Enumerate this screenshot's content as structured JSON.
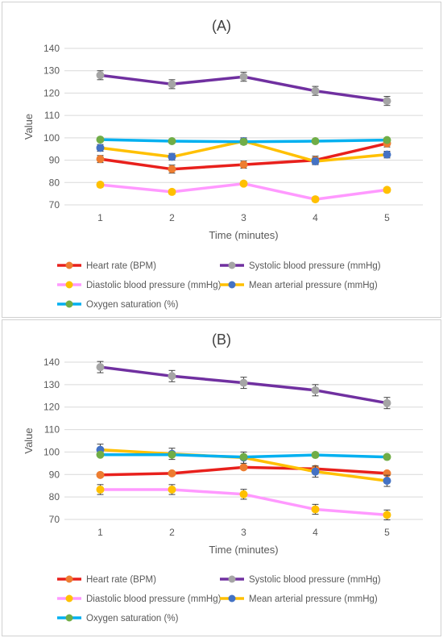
{
  "chart_data": [
    {
      "type": "line",
      "title": "(A)",
      "xlabel": "Time (minutes)",
      "ylabel": "Value",
      "categories": [
        "1",
        "2",
        "3",
        "4",
        "5"
      ],
      "ylim": [
        70,
        140
      ],
      "yticks": [
        70,
        80,
        90,
        100,
        110,
        120,
        130,
        140
      ],
      "grid": true,
      "legend_position": "bottom",
      "series": [
        {
          "name": "Heart rate (BPM)",
          "line_color": "#e8201c",
          "marker_color": "#ed7d31",
          "values": [
            90.5,
            86,
            88,
            90,
            97.5
          ],
          "errors": [
            1.6,
            1.8,
            1.6,
            1.8,
            1.6
          ]
        },
        {
          "name": "Systolic blood pressure (mmHg)",
          "line_color": "#7030a0",
          "marker_color": "#a5a5a5",
          "values": [
            128,
            124,
            127.3,
            121,
            116.5
          ],
          "errors": [
            2.0,
            2.0,
            2.0,
            2.0,
            2.0
          ]
        },
        {
          "name": "Diastolic blood pressure (mmHg)",
          "line_color": "#ff99ff",
          "marker_color": "#ffc000",
          "values": [
            79,
            75.8,
            79.5,
            72.5,
            76.7
          ],
          "errors": [
            1.0,
            1.0,
            1.0,
            1.0,
            1.0
          ]
        },
        {
          "name": "Mean arterial pressure (mmHg)",
          "line_color": "#ffc000",
          "marker_color": "#4472c4",
          "values": [
            95.5,
            91.5,
            98.5,
            89.5,
            92.5
          ],
          "errors": [
            1.5,
            1.5,
            1.5,
            1.5,
            1.5
          ]
        },
        {
          "name": "Oxygen saturation (%)",
          "line_color": "#00b0f0",
          "marker_color": "#70ad47",
          "values": [
            99.2,
            98.5,
            98.2,
            98.5,
            99
          ],
          "errors": [
            0.5,
            0.5,
            0.5,
            0.5,
            0.5
          ]
        }
      ]
    },
    {
      "type": "line",
      "title": "(B)",
      "xlabel": "Time (minutes)",
      "ylabel": "Value",
      "categories": [
        "1",
        "2",
        "3",
        "4",
        "5"
      ],
      "ylim": [
        70,
        140
      ],
      "yticks": [
        70,
        80,
        90,
        100,
        110,
        120,
        130,
        140
      ],
      "grid": true,
      "legend_position": "bottom",
      "series": [
        {
          "name": "Heart rate (BPM)",
          "line_color": "#e8201c",
          "marker_color": "#ed7d31",
          "values": [
            89.8,
            90.5,
            93.2,
            92.5,
            90.5
          ],
          "errors": [
            0.6,
            0.6,
            0.6,
            0.6,
            0.6
          ]
        },
        {
          "name": "Systolic blood pressure (mmHg)",
          "line_color": "#7030a0",
          "marker_color": "#a5a5a5",
          "values": [
            137.8,
            133.8,
            130.8,
            127.5,
            121.8
          ],
          "errors": [
            2.5,
            2.5,
            2.5,
            2.5,
            2.5
          ]
        },
        {
          "name": "Diastolic blood pressure (mmHg)",
          "line_color": "#ff99ff",
          "marker_color": "#ffc000",
          "values": [
            83.3,
            83.3,
            81.2,
            74.5,
            72
          ],
          "errors": [
            2.2,
            2.2,
            2.2,
            2.2,
            2.2
          ]
        },
        {
          "name": "Mean arterial pressure (mmHg)",
          "line_color": "#ffc000",
          "marker_color": "#4472c4",
          "values": [
            101,
            99.2,
            97.5,
            91.3,
            87.2
          ],
          "errors": [
            2.5,
            2.5,
            2.5,
            2.5,
            2.5
          ]
        },
        {
          "name": "Oxygen saturation (%)",
          "line_color": "#00b0f0",
          "marker_color": "#70ad47",
          "values": [
            98.8,
            98.8,
            97.8,
            98.7,
            97.8
          ],
          "errors": [
            0.5,
            0.5,
            0.5,
            0.5,
            0.5
          ]
        }
      ]
    }
  ]
}
